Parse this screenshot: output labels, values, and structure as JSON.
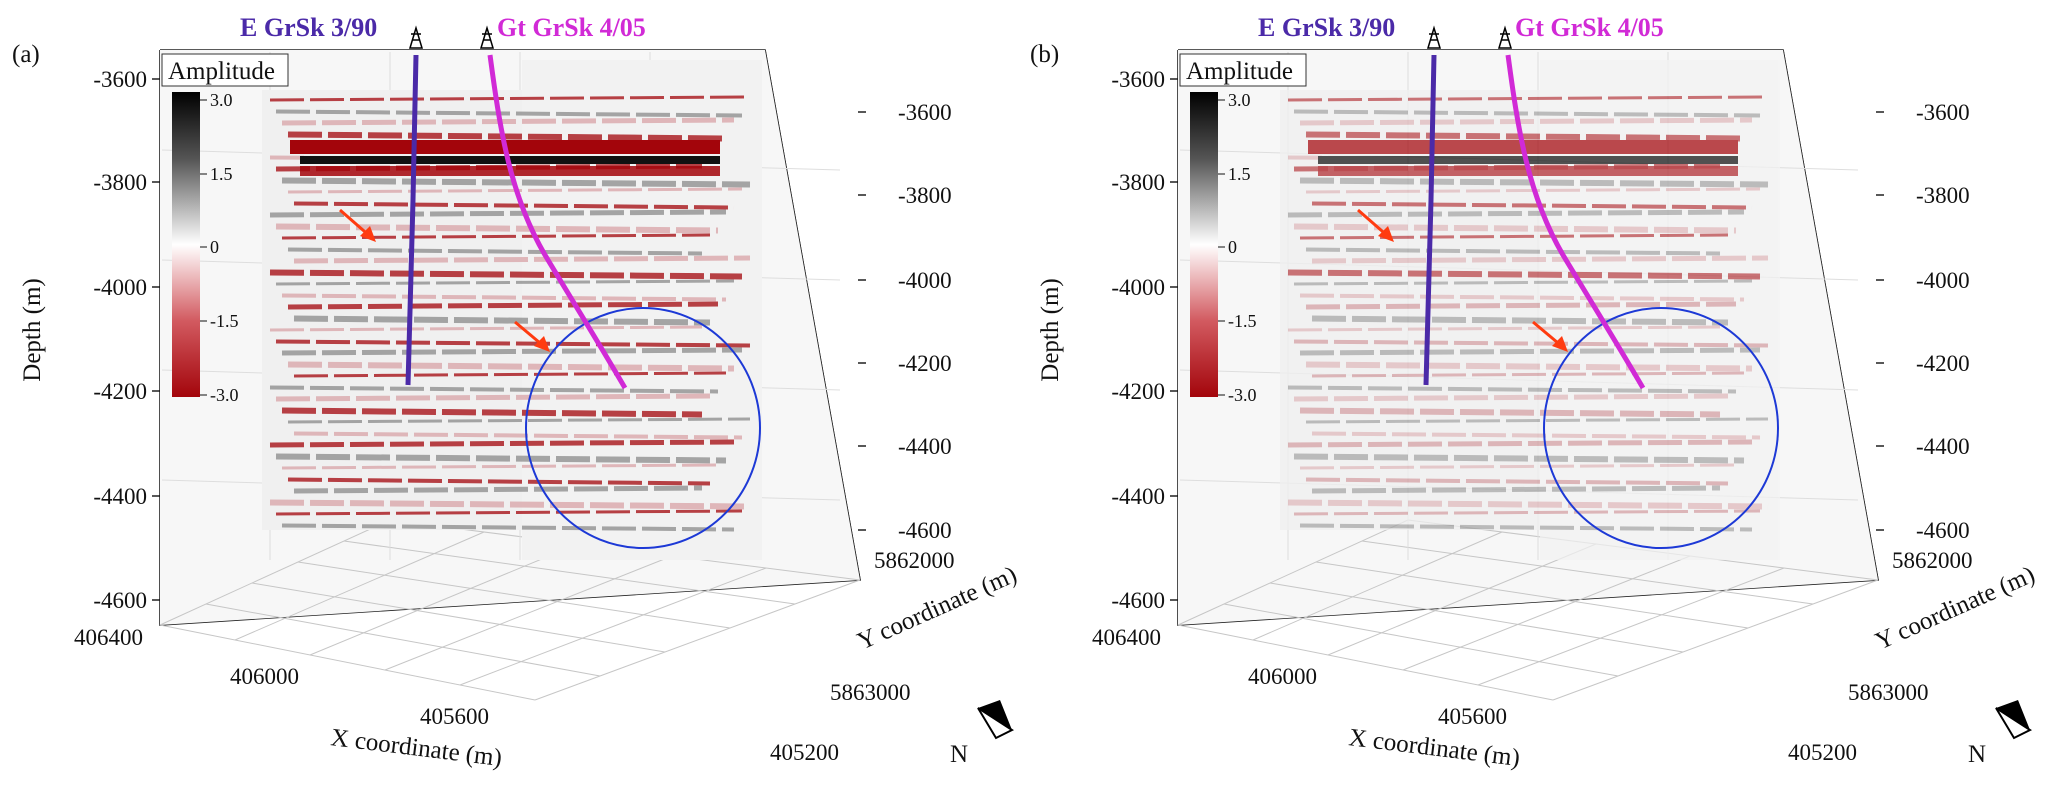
{
  "colors": {
    "well_e": "#4b2aa8",
    "well_gt": "#d12ad6",
    "circle": "#1d39d6",
    "arrow": "#ff3b10",
    "amp_pos": "#000000",
    "amp_neg": "#a3050b"
  },
  "panels": [
    {
      "id": "a",
      "label": "(a)",
      "wells": [
        {
          "name": "E GrSk 3/90"
        },
        {
          "name": "Gt GrSk 4/05"
        }
      ],
      "legend": {
        "title": "Amplitude",
        "ticks": [
          "3.0",
          "1.5",
          "0",
          "-1.5",
          "-3.0"
        ]
      },
      "axes": {
        "depth_title": "Depth (m)",
        "depth_ticks_left": [
          "-3600",
          "-3800",
          "-4000",
          "-4200",
          "-4400",
          "-4600"
        ],
        "depth_ticks_right": [
          "-3600",
          "-3800",
          "-4000",
          "-4200",
          "-4400",
          "-4600"
        ],
        "x_title": "X coordinate (m)",
        "x_ticks": [
          "406400",
          "406000",
          "405600",
          "405200"
        ],
        "y_title": "Y coordinate (m)",
        "y_ticks": [
          "5862000",
          "5863000"
        ]
      },
      "north": "N",
      "attenuated": false
    },
    {
      "id": "b",
      "label": "(b)",
      "wells": [
        {
          "name": "E GrSk 3/90"
        },
        {
          "name": "Gt GrSk 4/05"
        }
      ],
      "legend": {
        "title": "Amplitude",
        "ticks": [
          "3.0",
          "1.5",
          "0",
          "-1.5",
          "-3.0"
        ]
      },
      "axes": {
        "depth_title": "Depth (m)",
        "depth_ticks_left": [
          "-3600",
          "-3800",
          "-4000",
          "-4200",
          "-4400",
          "-4600"
        ],
        "depth_ticks_right": [
          "-3600",
          "-3800",
          "-4000",
          "-4200",
          "-4400",
          "-4600"
        ],
        "x_title": "X coordinate (m)",
        "x_ticks": [
          "406400",
          "406000",
          "405600",
          "405200"
        ],
        "y_title": "Y coordinate (m)",
        "y_ticks": [
          "5862000",
          "5863000"
        ]
      },
      "north": "N",
      "attenuated": true
    }
  ]
}
